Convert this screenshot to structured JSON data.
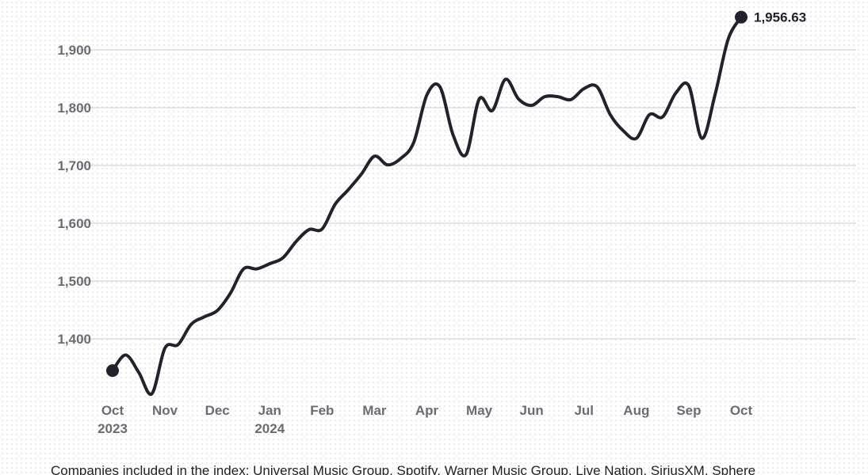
{
  "chart_data": {
    "type": "line",
    "categories": [
      "Oct 2023",
      null,
      null,
      null,
      "Nov",
      null,
      null,
      null,
      "Dec",
      null,
      null,
      null,
      "Jan 2024",
      null,
      null,
      null,
      "Feb",
      null,
      null,
      null,
      "Mar",
      null,
      null,
      null,
      "Apr",
      null,
      null,
      null,
      "May",
      null,
      null,
      null,
      "Jun",
      null,
      null,
      null,
      "Jul",
      null,
      null,
      null,
      "Aug",
      null,
      null,
      null,
      "Sep",
      null,
      null,
      null,
      "Oct"
    ],
    "values": [
      1345,
      1372,
      1342,
      1305,
      1384,
      1390,
      1425,
      1438,
      1449,
      1479,
      1521,
      1521,
      1530,
      1540,
      1568,
      1589,
      1590,
      1633,
      1658,
      1685,
      1716,
      1701,
      1712,
      1740,
      1822,
      1836,
      1753,
      1719,
      1815,
      1795,
      1849,
      1815,
      1804,
      1819,
      1819,
      1814,
      1833,
      1836,
      1788,
      1760,
      1747,
      1788,
      1784,
      1825,
      1838,
      1747,
      1822,
      1918,
      1956.63
    ],
    "value_labels": [
      null,
      null,
      null,
      null,
      null,
      null,
      null,
      null,
      null,
      null,
      null,
      null,
      null,
      null,
      null,
      null,
      null,
      null,
      null,
      null,
      null,
      null,
      null,
      null,
      null,
      null,
      null,
      null,
      null,
      null,
      null,
      null,
      null,
      null,
      null,
      null,
      null,
      null,
      null,
      null,
      null,
      null,
      null,
      null,
      null,
      null,
      null,
      null,
      "1,956.63"
    ],
    "color": "#22222e",
    "ylim": [
      1300,
      1960
    ],
    "yticks": [
      {
        "value": 1400,
        "label": "1,400"
      },
      {
        "value": 1500,
        "label": "1,500"
      },
      {
        "value": 1600,
        "label": "1,600"
      },
      {
        "value": 1700,
        "label": "1,700"
      },
      {
        "value": 1800,
        "label": "1,800"
      },
      {
        "value": 1900,
        "label": "1,900"
      }
    ],
    "grid": true,
    "footnote": "Companies included in the index: Universal Music Group, Spotify, Warner Music Group, Live Nation, SiriusXM, Sphere"
  }
}
